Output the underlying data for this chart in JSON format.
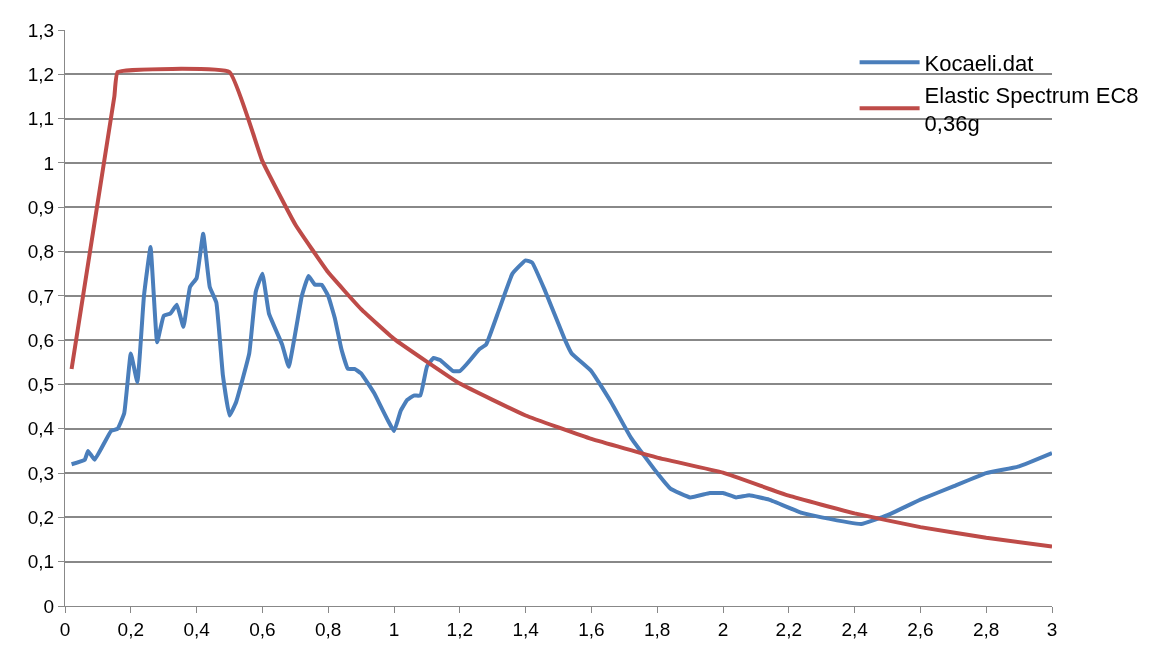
{
  "chart_data": {
    "type": "line",
    "series": [
      {
        "name": "Kocaeli.dat",
        "color": "#4a7ebb",
        "x": [
          0.02,
          0.06,
          0.07,
          0.09,
          0.14,
          0.16,
          0.18,
          0.2,
          0.22,
          0.24,
          0.26,
          0.28,
          0.3,
          0.32,
          0.34,
          0.36,
          0.38,
          0.4,
          0.42,
          0.44,
          0.46,
          0.48,
          0.5,
          0.52,
          0.56,
          0.58,
          0.6,
          0.62,
          0.66,
          0.68,
          0.72,
          0.74,
          0.76,
          0.78,
          0.8,
          0.82,
          0.84,
          0.86,
          0.88,
          0.9,
          0.94,
          1.0,
          1.02,
          1.04,
          1.06,
          1.08,
          1.1,
          1.12,
          1.14,
          1.18,
          1.2,
          1.22,
          1.26,
          1.28,
          1.32,
          1.36,
          1.4,
          1.42,
          1.46,
          1.52,
          1.54,
          1.6,
          1.66,
          1.72,
          1.8,
          1.84,
          1.9,
          1.96,
          2.0,
          2.04,
          2.08,
          2.14,
          2.24,
          2.3,
          2.42,
          2.5,
          2.6,
          2.7,
          2.8,
          2.9,
          3.0
        ],
        "values": [
          0.32,
          0.33,
          0.35,
          0.33,
          0.395,
          0.4,
          0.435,
          0.57,
          0.505,
          0.7,
          0.81,
          0.595,
          0.655,
          0.66,
          0.68,
          0.63,
          0.72,
          0.74,
          0.84,
          0.72,
          0.685,
          0.52,
          0.43,
          0.46,
          0.57,
          0.71,
          0.75,
          0.66,
          0.59,
          0.54,
          0.7,
          0.745,
          0.725,
          0.725,
          0.7,
          0.65,
          0.58,
          0.535,
          0.535,
          0.525,
          0.48,
          0.395,
          0.44,
          0.465,
          0.475,
          0.475,
          0.54,
          0.56,
          0.555,
          0.53,
          0.53,
          0.545,
          0.58,
          0.59,
          0.67,
          0.75,
          0.78,
          0.775,
          0.71,
          0.6,
          0.57,
          0.53,
          0.46,
          0.38,
          0.3,
          0.265,
          0.245,
          0.255,
          0.255,
          0.245,
          0.25,
          0.24,
          0.21,
          0.2,
          0.185,
          0.205,
          0.24,
          0.27,
          0.3,
          0.315,
          0.345
        ]
      },
      {
        "name": "Elastic Spectrum EC8\n0,36g",
        "color": "#be4b48",
        "x": [
          0.02,
          0.15,
          0.16,
          0.5,
          0.6,
          0.7,
          0.8,
          0.9,
          1.0,
          1.2,
          1.4,
          1.6,
          1.8,
          2.0,
          2.2,
          2.4,
          2.6,
          2.8,
          3.0
        ],
        "values": [
          0.535,
          1.15,
          1.205,
          1.205,
          1.004,
          0.861,
          0.753,
          0.67,
          0.603,
          0.502,
          0.43,
          0.377,
          0.335,
          0.301,
          0.249,
          0.209,
          0.178,
          0.154,
          0.134
        ]
      }
    ],
    "xlim": [
      0,
      3
    ],
    "xticks": [
      0,
      {
        "value": 0.2,
        "label": "0,2"
      },
      {
        "value": 0.4,
        "label": "0,4"
      },
      {
        "value": 0.6,
        "label": "0,6"
      },
      {
        "value": 0.8,
        "label": "0,8"
      },
      1,
      {
        "value": 1.2,
        "label": "1,2"
      },
      {
        "value": 1.4,
        "label": "1,4"
      },
      {
        "value": 1.6,
        "label": "1,6"
      },
      {
        "value": 1.8,
        "label": "1,8"
      },
      2,
      {
        "value": 2.2,
        "label": "2,2"
      },
      {
        "value": 2.4,
        "label": "2,4"
      },
      {
        "value": 2.6,
        "label": "2,6"
      },
      {
        "value": 2.8,
        "label": "2,8"
      },
      3
    ],
    "ylim": [
      0,
      1.3
    ],
    "yticks": [
      0,
      {
        "value": 0.1,
        "label": "0,1"
      },
      {
        "value": 0.2,
        "label": "0,2"
      },
      {
        "value": 0.3,
        "label": "0,3"
      },
      {
        "value": 0.4,
        "label": "0,4"
      },
      {
        "value": 0.5,
        "label": "0,5"
      },
      {
        "value": 0.6,
        "label": "0,6"
      },
      {
        "value": 0.7,
        "label": "0,7"
      },
      {
        "value": 0.8,
        "label": "0,8"
      },
      {
        "value": 0.9,
        "label": "0,9"
      },
      1,
      {
        "value": 1.1,
        "label": "1,1"
      },
      {
        "value": 1.2,
        "label": "1,2"
      },
      {
        "value": 1.3,
        "label": "1,3"
      }
    ],
    "grid": "y",
    "legend": "top right",
    "marker": "none",
    "line_style": "solid"
  }
}
